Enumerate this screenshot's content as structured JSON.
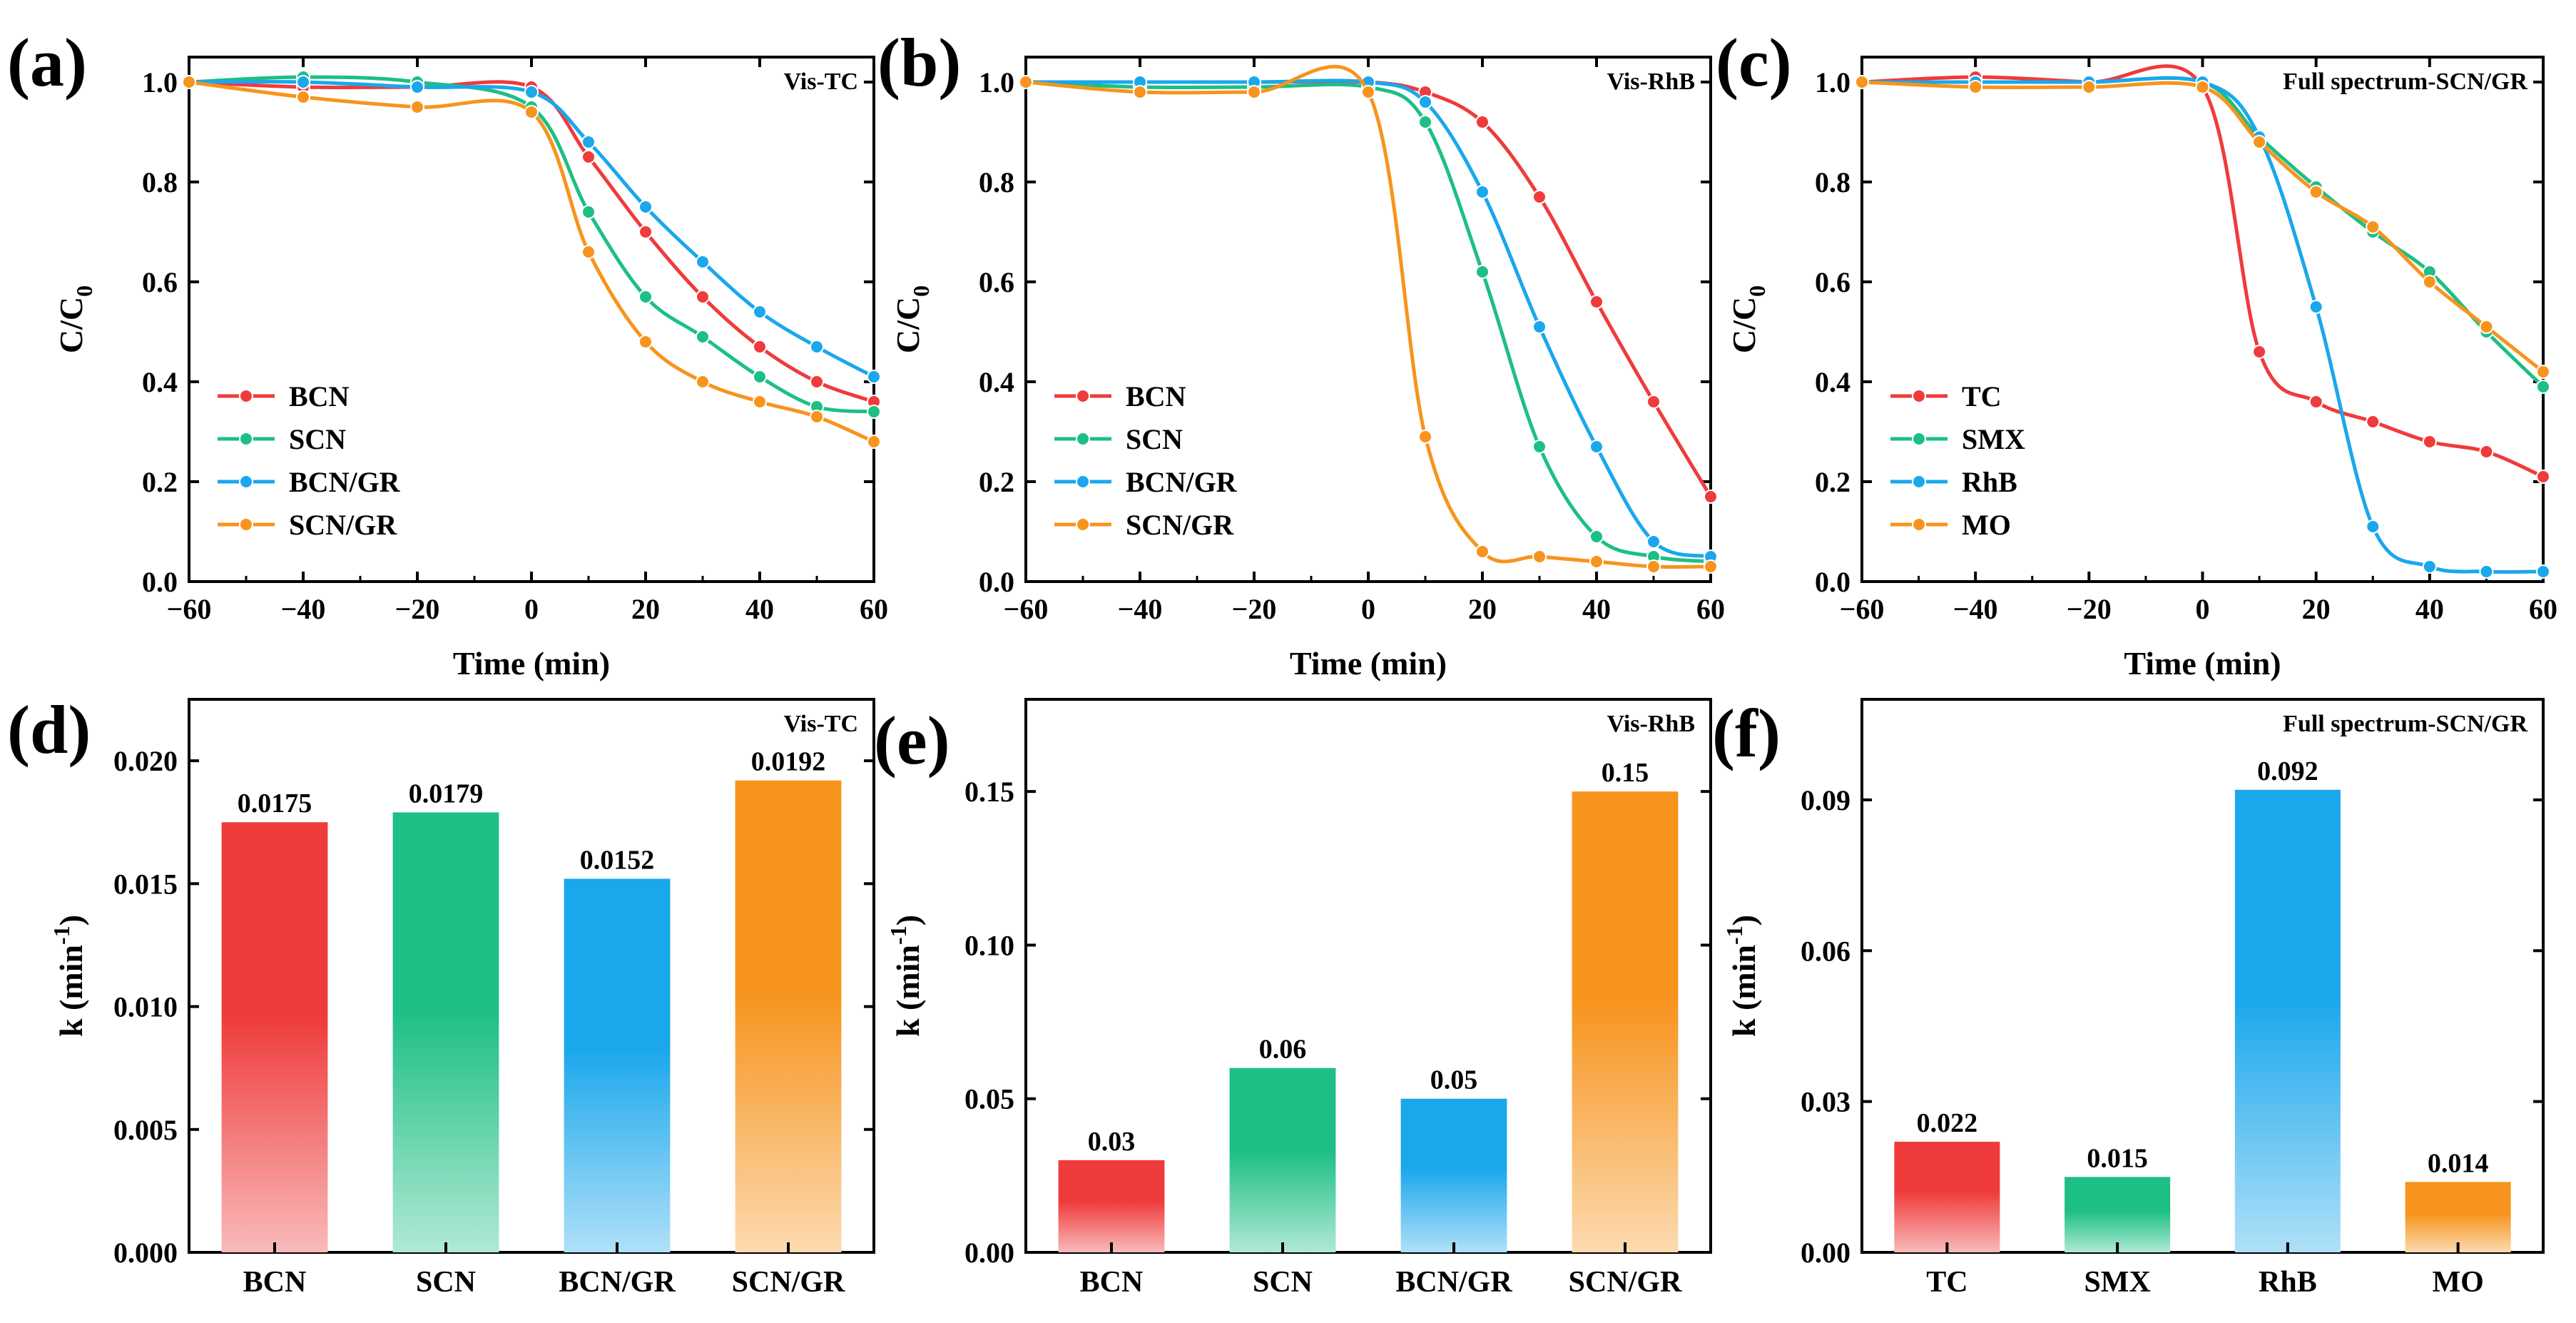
{
  "colors": {
    "red": "#ef3b3b",
    "green": "#1dbf84",
    "blue": "#1aa7ec",
    "orange": "#f7941d"
  },
  "chart_data": [
    {
      "id": "a",
      "type": "line",
      "label": "(a)",
      "title": "Vis-TC",
      "xlabel": "Time (min)",
      "ylabel": "C/C0",
      "xlim": [
        -60,
        60
      ],
      "ylim": [
        0,
        1.05
      ],
      "xticks": [
        -60,
        -40,
        -20,
        0,
        20,
        40,
        60
      ],
      "xtick_labels": [
        "−60",
        "−40",
        "−20",
        "0",
        "20",
        "40",
        "60"
      ],
      "yticks": [
        0,
        0.2,
        0.4,
        0.6,
        0.8,
        1.0
      ],
      "ytick_labels": [
        "0.0",
        "0.2",
        "0.4",
        "0.6",
        "0.8",
        "1.0"
      ],
      "legend_position": "lower-left",
      "series": [
        {
          "name": "BCN",
          "color": "#ef3b3b",
          "x": [
            -60,
            -40,
            -20,
            0,
            10,
            20,
            30,
            40,
            50,
            60
          ],
          "y": [
            1.0,
            0.99,
            0.99,
            0.99,
            0.85,
            0.7,
            0.57,
            0.47,
            0.4,
            0.36
          ]
        },
        {
          "name": "SCN",
          "color": "#1dbf84",
          "x": [
            -60,
            -40,
            -20,
            0,
            10,
            20,
            30,
            40,
            50,
            60
          ],
          "y": [
            1.0,
            1.01,
            1.0,
            0.95,
            0.74,
            0.57,
            0.49,
            0.41,
            0.35,
            0.34
          ]
        },
        {
          "name": "BCN/GR",
          "color": "#1aa7ec",
          "x": [
            -60,
            -40,
            -20,
            0,
            10,
            20,
            30,
            40,
            50,
            60
          ],
          "y": [
            1.0,
            1.0,
            0.99,
            0.98,
            0.88,
            0.75,
            0.64,
            0.54,
            0.47,
            0.41
          ]
        },
        {
          "name": "SCN/GR",
          "color": "#f7941d",
          "x": [
            -60,
            -40,
            -20,
            0,
            10,
            20,
            30,
            40,
            50,
            60
          ],
          "y": [
            1.0,
            0.97,
            0.95,
            0.94,
            0.66,
            0.48,
            0.4,
            0.36,
            0.33,
            0.28
          ]
        }
      ]
    },
    {
      "id": "b",
      "type": "line",
      "label": "(b)",
      "title": "Vis-RhB",
      "xlabel": "Time (min)",
      "ylabel": "C/C0",
      "xlim": [
        -60,
        60
      ],
      "ylim": [
        0,
        1.05
      ],
      "xticks": [
        -60,
        -40,
        -20,
        0,
        20,
        40,
        60
      ],
      "xtick_labels": [
        "−60",
        "−40",
        "−20",
        "0",
        "20",
        "40",
        "60"
      ],
      "yticks": [
        0,
        0.2,
        0.4,
        0.6,
        0.8,
        1.0
      ],
      "ytick_labels": [
        "0.0",
        "0.2",
        "0.4",
        "0.6",
        "0.8",
        "1.0"
      ],
      "legend_position": "lower-left",
      "series": [
        {
          "name": "BCN",
          "color": "#ef3b3b",
          "x": [
            -60,
            -40,
            -20,
            0,
            10,
            20,
            30,
            40,
            50,
            60
          ],
          "y": [
            1.0,
            1.0,
            1.0,
            1.0,
            0.98,
            0.92,
            0.77,
            0.56,
            0.36,
            0.17
          ]
        },
        {
          "name": "SCN",
          "color": "#1dbf84",
          "x": [
            -60,
            -40,
            -20,
            0,
            10,
            20,
            30,
            40,
            50,
            60
          ],
          "y": [
            1.0,
            0.99,
            0.99,
            0.99,
            0.92,
            0.62,
            0.27,
            0.09,
            0.05,
            0.04
          ]
        },
        {
          "name": "BCN/GR",
          "color": "#1aa7ec",
          "x": [
            -60,
            -40,
            -20,
            0,
            10,
            20,
            30,
            40,
            50,
            60
          ],
          "y": [
            1.0,
            1.0,
            1.0,
            1.0,
            0.96,
            0.78,
            0.51,
            0.27,
            0.08,
            0.05
          ]
        },
        {
          "name": "SCN/GR",
          "color": "#f7941d",
          "x": [
            -60,
            -40,
            -20,
            0,
            10,
            20,
            30,
            40,
            50,
            60
          ],
          "y": [
            1.0,
            0.98,
            0.98,
            0.98,
            0.29,
            0.06,
            0.05,
            0.04,
            0.03,
            0.03
          ]
        }
      ]
    },
    {
      "id": "c",
      "type": "line",
      "label": "(c)",
      "title": "Full spectrum-SCN/GR",
      "xlabel": "Time (min)",
      "ylabel": "C/C0",
      "xlim": [
        -60,
        60
      ],
      "ylim": [
        0,
        1.05
      ],
      "xticks": [
        -60,
        -40,
        -20,
        0,
        20,
        40,
        60
      ],
      "xtick_labels": [
        "−60",
        "−40",
        "−20",
        "0",
        "20",
        "40",
        "60"
      ],
      "yticks": [
        0,
        0.2,
        0.4,
        0.6,
        0.8,
        1.0
      ],
      "ytick_labels": [
        "0.0",
        "0.2",
        "0.4",
        "0.6",
        "0.8",
        "1.0"
      ],
      "legend_position": "lower-left",
      "series": [
        {
          "name": "TC",
          "color": "#ef3b3b",
          "x": [
            -60,
            -40,
            -20,
            0,
            10,
            20,
            30,
            40,
            50,
            60
          ],
          "y": [
            1.0,
            1.01,
            1.0,
            0.99,
            0.46,
            0.36,
            0.32,
            0.28,
            0.26,
            0.21
          ]
        },
        {
          "name": "SMX",
          "color": "#1dbf84",
          "x": [
            -60,
            -40,
            -20,
            0,
            10,
            20,
            30,
            40,
            50,
            60
          ],
          "y": [
            1.0,
            1.0,
            1.0,
            1.0,
            0.89,
            0.79,
            0.7,
            0.62,
            0.5,
            0.39
          ]
        },
        {
          "name": "RhB",
          "color": "#1aa7ec",
          "x": [
            -60,
            -40,
            -20,
            0,
            10,
            20,
            30,
            40,
            50,
            60
          ],
          "y": [
            1.0,
            1.0,
            1.0,
            1.0,
            0.89,
            0.55,
            0.11,
            0.03,
            0.02,
            0.02
          ]
        },
        {
          "name": "MO",
          "color": "#f7941d",
          "x": [
            -60,
            -40,
            -20,
            0,
            10,
            20,
            30,
            40,
            50,
            60
          ],
          "y": [
            1.0,
            0.99,
            0.99,
            0.99,
            0.88,
            0.78,
            0.71,
            0.6,
            0.51,
            0.42
          ]
        }
      ]
    },
    {
      "id": "d",
      "type": "bar",
      "label": "(d)",
      "title": "Vis-TC",
      "xlabel": "",
      "ylabel": "k (min-1)",
      "ylim": [
        0,
        0.0225
      ],
      "yticks": [
        0,
        0.005,
        0.01,
        0.015,
        0.02
      ],
      "ytick_labels": [
        "0.000",
        "0.005",
        "0.010",
        "0.015",
        "0.020"
      ],
      "categories": [
        "BCN",
        "SCN",
        "BCN/GR",
        "SCN/GR"
      ],
      "values": [
        0.0175,
        0.0179,
        0.0152,
        0.0192
      ],
      "value_labels": [
        "0.0175",
        "0.0179",
        "0.0152",
        "0.0192"
      ],
      "colors": [
        "#ef3b3b",
        "#1dbf84",
        "#1aa7ec",
        "#f7941d"
      ]
    },
    {
      "id": "e",
      "type": "bar",
      "label": "(e)",
      "title": "Vis-RhB",
      "xlabel": "",
      "ylabel": "k (min-1)",
      "ylim": [
        0,
        0.18
      ],
      "yticks": [
        0,
        0.05,
        0.1,
        0.15
      ],
      "ytick_labels": [
        "0.00",
        "0.05",
        "0.10",
        "0.15"
      ],
      "categories": [
        "BCN",
        "SCN",
        "BCN/GR",
        "SCN/GR"
      ],
      "values": [
        0.03,
        0.06,
        0.05,
        0.15
      ],
      "value_labels": [
        "0.03",
        "0.06",
        "0.05",
        "0.15"
      ],
      "colors": [
        "#ef3b3b",
        "#1dbf84",
        "#1aa7ec",
        "#f7941d"
      ]
    },
    {
      "id": "f",
      "type": "bar",
      "label": "(f)",
      "title": "Full spectrum-SCN/GR",
      "xlabel": "",
      "ylabel": "k (min-1)",
      "ylim": [
        0,
        0.11
      ],
      "yticks": [
        0,
        0.03,
        0.06,
        0.09
      ],
      "ytick_labels": [
        "0.00",
        "0.03",
        "0.06",
        "0.09"
      ],
      "categories": [
        "TC",
        "SMX",
        "RhB",
        "MO"
      ],
      "values": [
        0.022,
        0.015,
        0.092,
        0.014
      ],
      "value_labels": [
        "0.022",
        "0.015",
        "0.092",
        "0.014"
      ],
      "colors": [
        "#ef3b3b",
        "#1dbf84",
        "#1aa7ec",
        "#f7941d"
      ]
    }
  ]
}
